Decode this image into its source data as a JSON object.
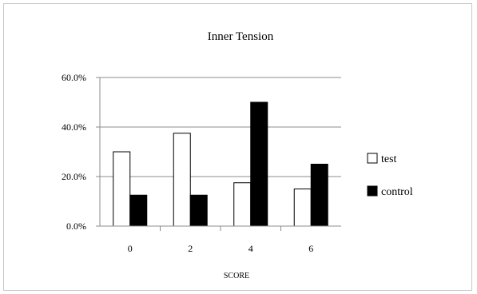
{
  "chart_data": {
    "type": "bar",
    "title": "Inner Tension",
    "xlabel": "SCORE",
    "ylabel": "",
    "categories": [
      "0",
      "2",
      "4",
      "6"
    ],
    "ylim": [
      0,
      60
    ],
    "yticks": [
      "0.0%",
      "20.0%",
      "40.0%",
      "60.0%"
    ],
    "grid": true,
    "legend_position": "right",
    "series": [
      {
        "name": "test",
        "values": [
          30,
          37.5,
          17.5,
          15
        ],
        "color": "#ffffff",
        "stroke": "#000000"
      },
      {
        "name": "control",
        "values": [
          12.5,
          12.5,
          50,
          25
        ],
        "color": "#000000",
        "stroke": "#000000"
      }
    ]
  }
}
